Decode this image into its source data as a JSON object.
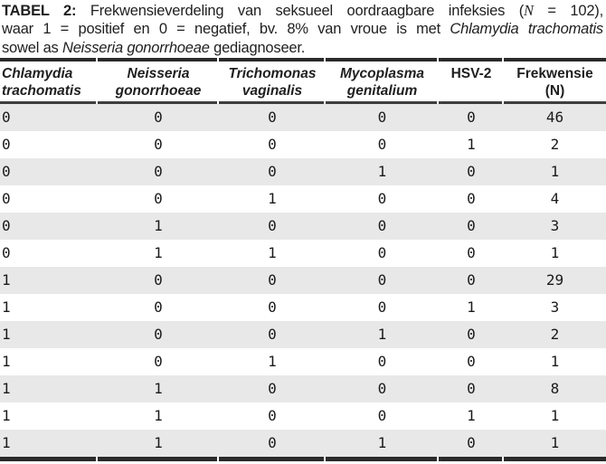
{
  "caption": {
    "lines": [
      [
        {
          "text": "TABEL 2:",
          "bold": true,
          "name": "table-label"
        },
        {
          "text": " Frekwensieverdeling van seksueel oordraagbare infeksies ("
        },
        {
          "text": "N",
          "italic": true,
          "math": true
        },
        {
          "text": " = 102),"
        }
      ],
      [
        {
          "text": "waar 1 = positief en 0 = negatief, bv. 8% van vroue is met "
        },
        {
          "text": "Chlamydia trachomatis",
          "italic": true
        }
      ],
      [
        {
          "text": "sowel as "
        },
        {
          "text": "Neisseria gonorrhoeae",
          "italic": true
        },
        {
          "text": " gediagnoseer."
        }
      ]
    ]
  },
  "table": {
    "columns": [
      {
        "lines": [
          "Chlamydia",
          "trachomatis"
        ],
        "italic": true,
        "align": "left"
      },
      {
        "lines": [
          "Neisseria",
          "gonorrhoeae"
        ],
        "italic": true,
        "align": "center"
      },
      {
        "lines": [
          "Trichomonas",
          "vaginalis"
        ],
        "italic": true,
        "align": "center"
      },
      {
        "lines": [
          "Mycoplasma",
          "genitalium"
        ],
        "italic": true,
        "align": "center"
      },
      {
        "lines": [
          "HSV-2"
        ],
        "italic": false,
        "align": "center"
      },
      {
        "lines": [
          "Frekwensie",
          "(N)"
        ],
        "italic": false,
        "align": "center"
      }
    ],
    "rows": [
      {
        "values": [
          "0",
          "0",
          "0",
          "0",
          "0",
          "46"
        ],
        "shaded": true
      },
      {
        "values": [
          "0",
          "0",
          "0",
          "0",
          "1",
          "2"
        ],
        "shaded": false
      },
      {
        "values": [
          "0",
          "0",
          "0",
          "1",
          "0",
          "1"
        ],
        "shaded": true
      },
      {
        "values": [
          "0",
          "0",
          "1",
          "0",
          "0",
          "4"
        ],
        "shaded": false
      },
      {
        "values": [
          "0",
          "1",
          "0",
          "0",
          "0",
          "3"
        ],
        "shaded": true
      },
      {
        "values": [
          "0",
          "1",
          "1",
          "0",
          "0",
          "1"
        ],
        "shaded": false
      },
      {
        "values": [
          "1",
          "0",
          "0",
          "0",
          "0",
          "29"
        ],
        "shaded": true
      },
      {
        "values": [
          "1",
          "0",
          "0",
          "0",
          "1",
          "3"
        ],
        "shaded": false
      },
      {
        "values": [
          "1",
          "0",
          "0",
          "1",
          "0",
          "2"
        ],
        "shaded": true
      },
      {
        "values": [
          "1",
          "0",
          "1",
          "0",
          "0",
          "1"
        ],
        "shaded": false
      },
      {
        "values": [
          "1",
          "1",
          "0",
          "0",
          "0",
          "8"
        ],
        "shaded": true
      },
      {
        "values": [
          "1",
          "1",
          "0",
          "0",
          "1",
          "1"
        ],
        "shaded": false
      },
      {
        "values": [
          "1",
          "1",
          "0",
          "1",
          "0",
          "1"
        ],
        "shaded": true
      }
    ]
  },
  "colors": {
    "text": "#1f1f1f",
    "rule_heavy": "#2a2a2a",
    "rule_light": "#3e3e3e",
    "row_shade": "#e8e8e8",
    "background": "#ffffff"
  }
}
